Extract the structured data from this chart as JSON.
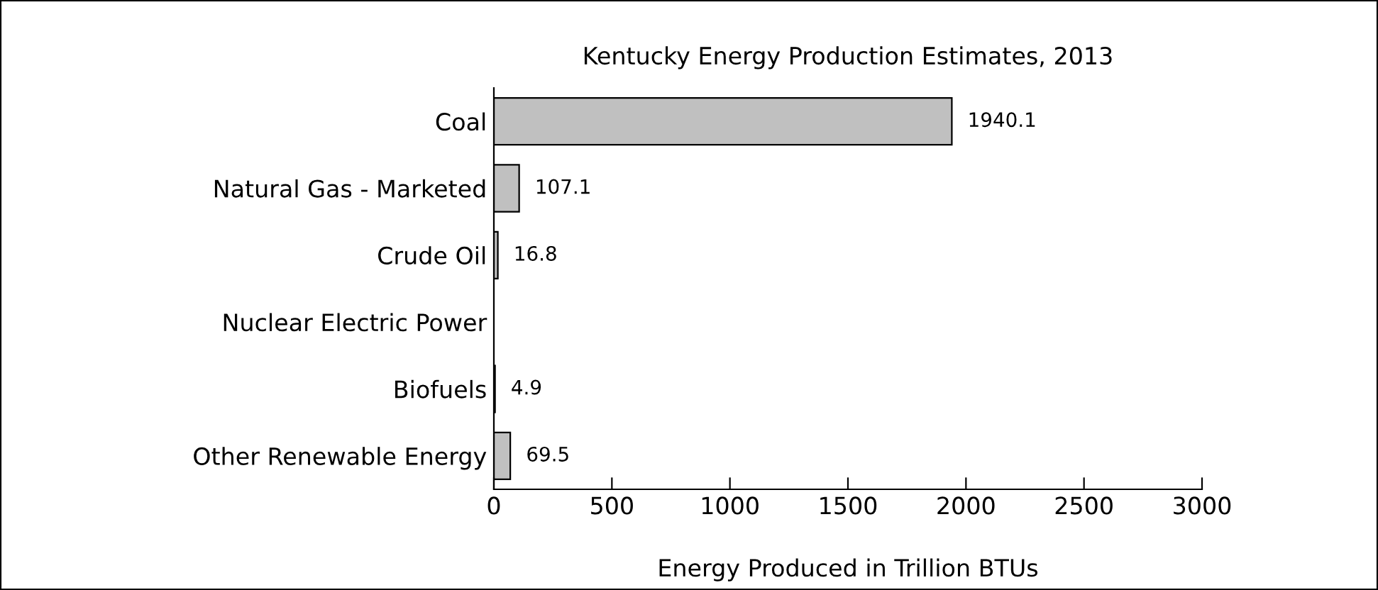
{
  "chart_data": {
    "type": "bar",
    "orientation": "horizontal",
    "title": "Kentucky Energy Production Estimates, 2013",
    "xlabel": "Energy Produced in Trillion BTUs",
    "categories": [
      "Coal",
      "Natural Gas - Marketed",
      "Crude Oil",
      "Nuclear Electric Power",
      "Biofuels",
      "Other Renewable Energy"
    ],
    "values": [
      1940.1,
      107.1,
      16.8,
      null,
      4.9,
      69.5
    ],
    "value_labels": [
      "1940.1",
      "107.1",
      "16.8",
      null,
      "4.9",
      "69.5"
    ],
    "color": "#c0c0c0",
    "xlim": [
      0,
      3000
    ],
    "xticks": [
      0,
      500,
      1000,
      1500,
      2000,
      2500,
      3000
    ],
    "grid": false
  }
}
